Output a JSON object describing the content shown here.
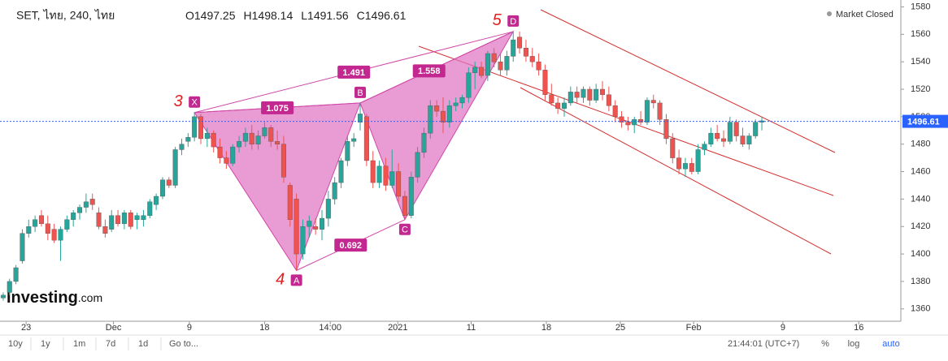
{
  "header": {
    "symbol": "SET, ไทย, 240, ไทย",
    "ohlc": [
      {
        "label": "O",
        "value": 1497.25
      },
      {
        "label": "H",
        "value": 1498.14
      },
      {
        "label": "L",
        "value": 1491.56
      },
      {
        "label": "C",
        "value": 1496.61
      }
    ],
    "status": "Market Closed",
    "logo": "Investing",
    "logo_suffix": ".com"
  },
  "chart_data": {
    "type": "candlestick",
    "up_color": "#26a69a",
    "down_color": "#ef5350",
    "ylim": [
      1351,
      1585
    ],
    "yticks": [
      1360,
      1380,
      1400,
      1420,
      1440,
      1460,
      1480,
      1500,
      1520,
      1540,
      1560,
      1580
    ],
    "xlim": [
      -0.5,
      140.8
    ],
    "xticks": [
      {
        "value": 3.6,
        "label": "23"
      },
      {
        "value": 17.3,
        "label": "Dec"
      },
      {
        "value": 29.2,
        "label": "9"
      },
      {
        "value": 41,
        "label": "18"
      },
      {
        "value": 51.3,
        "label": "14:00"
      },
      {
        "value": 61.9,
        "label": "2021"
      },
      {
        "value": 73.4,
        "label": "11"
      },
      {
        "value": 85.2,
        "label": "18"
      },
      {
        "value": 96.8,
        "label": "25"
      },
      {
        "value": 108.3,
        "label": "Feb"
      },
      {
        "value": 122.3,
        "label": "9"
      },
      {
        "value": 134.2,
        "label": "16"
      }
    ],
    "last_price": 1496.61,
    "candles": [
      [
        1368,
        1372,
        1366,
        1370
      ],
      [
        1372,
        1382,
        1370,
        1380
      ],
      [
        1380,
        1392,
        1378,
        1390
      ],
      [
        1395,
        1418,
        1393,
        1415
      ],
      [
        1415,
        1425,
        1412,
        1420
      ],
      [
        1420,
        1428,
        1416,
        1425
      ],
      [
        1428,
        1432,
        1420,
        1422
      ],
      [
        1422,
        1428,
        1410,
        1415
      ],
      [
        1418,
        1422,
        1408,
        1410
      ],
      [
        1410,
        1420,
        1395,
        1418
      ],
      [
        1418,
        1428,
        1416,
        1425
      ],
      [
        1425,
        1432,
        1420,
        1430
      ],
      [
        1430,
        1436,
        1425,
        1434
      ],
      [
        1434,
        1444,
        1430,
        1438
      ],
      [
        1440,
        1444,
        1432,
        1436
      ],
      [
        1430,
        1434,
        1418,
        1420
      ],
      [
        1420,
        1425,
        1412,
        1415
      ],
      [
        1418,
        1432,
        1416,
        1428
      ],
      [
        1428,
        1432,
        1420,
        1422
      ],
      [
        1422,
        1432,
        1418,
        1430
      ],
      [
        1430,
        1432,
        1418,
        1420
      ],
      [
        1425,
        1430,
        1418,
        1428
      ],
      [
        1425,
        1432,
        1420,
        1428
      ],
      [
        1428,
        1440,
        1426,
        1438
      ],
      [
        1436,
        1444,
        1432,
        1442
      ],
      [
        1442,
        1456,
        1440,
        1454
      ],
      [
        1454,
        1456,
        1448,
        1450
      ],
      [
        1450,
        1478,
        1448,
        1476
      ],
      [
        1476,
        1484,
        1472,
        1480
      ],
      [
        1482,
        1488,
        1478,
        1485
      ],
      [
        1485,
        1503,
        1482,
        1500
      ],
      [
        1500,
        1502,
        1480,
        1484
      ],
      [
        1484,
        1492,
        1478,
        1488
      ],
      [
        1488,
        1490,
        1474,
        1478
      ],
      [
        1478,
        1484,
        1466,
        1470
      ],
      [
        1470,
        1475,
        1462,
        1466
      ],
      [
        1466,
        1480,
        1464,
        1478
      ],
      [
        1478,
        1486,
        1474,
        1482
      ],
      [
        1482,
        1492,
        1478,
        1488
      ],
      [
        1488,
        1494,
        1476,
        1480
      ],
      [
        1480,
        1490,
        1476,
        1486
      ],
      [
        1486,
        1496,
        1484,
        1492
      ],
      [
        1492,
        1494,
        1478,
        1482
      ],
      [
        1482,
        1490,
        1476,
        1480
      ],
      [
        1480,
        1486,
        1452,
        1456
      ],
      [
        1450,
        1452,
        1420,
        1425
      ],
      [
        1440,
        1444,
        1388,
        1400
      ],
      [
        1400,
        1425,
        1396,
        1420
      ],
      [
        1420,
        1428,
        1412,
        1424
      ],
      [
        1420,
        1426,
        1414,
        1418
      ],
      [
        1418,
        1432,
        1410,
        1426
      ],
      [
        1426,
        1446,
        1420,
        1440
      ],
      [
        1440,
        1456,
        1436,
        1452
      ],
      [
        1452,
        1470,
        1448,
        1468
      ],
      [
        1468,
        1486,
        1464,
        1482
      ],
      [
        1482,
        1488,
        1478,
        1484
      ],
      [
        1496,
        1510,
        1490,
        1502
      ],
      [
        1500,
        1502,
        1464,
        1468
      ],
      [
        1468,
        1475,
        1448,
        1452
      ],
      [
        1452,
        1468,
        1448,
        1464
      ],
      [
        1464,
        1470,
        1446,
        1450
      ],
      [
        1450,
        1476,
        1448,
        1460
      ],
      [
        1460,
        1466,
        1438,
        1442
      ],
      [
        1442,
        1446,
        1425,
        1428
      ],
      [
        1428,
        1460,
        1426,
        1456
      ],
      [
        1456,
        1478,
        1452,
        1474
      ],
      [
        1474,
        1492,
        1470,
        1488
      ],
      [
        1488,
        1512,
        1484,
        1508
      ],
      [
        1508,
        1512,
        1500,
        1504
      ],
      [
        1504,
        1514,
        1488,
        1496
      ],
      [
        1496,
        1512,
        1492,
        1508
      ],
      [
        1508,
        1514,
        1504,
        1510
      ],
      [
        1510,
        1516,
        1506,
        1514
      ],
      [
        1514,
        1536,
        1510,
        1532
      ],
      [
        1532,
        1540,
        1520,
        1536
      ],
      [
        1536,
        1540,
        1528,
        1530
      ],
      [
        1530,
        1548,
        1526,
        1546
      ],
      [
        1546,
        1550,
        1536,
        1540
      ],
      [
        1540,
        1546,
        1530,
        1534
      ],
      [
        1534,
        1548,
        1530,
        1544
      ],
      [
        1544,
        1562,
        1540,
        1556
      ],
      [
        1558,
        1562,
        1546,
        1550
      ],
      [
        1550,
        1556,
        1540,
        1544
      ],
      [
        1544,
        1550,
        1536,
        1540
      ],
      [
        1540,
        1546,
        1530,
        1534
      ],
      [
        1534,
        1538,
        1512,
        1516
      ],
      [
        1516,
        1524,
        1508,
        1510
      ],
      [
        1510,
        1514,
        1502,
        1506
      ],
      [
        1506,
        1514,
        1500,
        1510
      ],
      [
        1510,
        1522,
        1508,
        1518
      ],
      [
        1518,
        1522,
        1510,
        1514
      ],
      [
        1514,
        1522,
        1510,
        1520
      ],
      [
        1520,
        1522,
        1508,
        1512
      ],
      [
        1512,
        1524,
        1510,
        1520
      ],
      [
        1520,
        1526,
        1512,
        1516
      ],
      [
        1516,
        1522,
        1504,
        1508
      ],
      [
        1508,
        1512,
        1496,
        1500
      ],
      [
        1500,
        1504,
        1492,
        1496
      ],
      [
        1496,
        1500,
        1490,
        1494
      ],
      [
        1494,
        1500,
        1488,
        1498
      ],
      [
        1498,
        1504,
        1494,
        1496
      ],
      [
        1496,
        1514,
        1494,
        1512
      ],
      [
        1512,
        1516,
        1506,
        1510
      ],
      [
        1510,
        1512,
        1494,
        1498
      ],
      [
        1498,
        1502,
        1480,
        1484
      ],
      [
        1484,
        1488,
        1466,
        1470
      ],
      [
        1470,
        1476,
        1458,
        1462
      ],
      [
        1462,
        1470,
        1456,
        1466
      ],
      [
        1466,
        1470,
        1458,
        1460
      ],
      [
        1460,
        1480,
        1458,
        1476
      ],
      [
        1476,
        1482,
        1472,
        1480
      ],
      [
        1480,
        1492,
        1478,
        1488
      ],
      [
        1488,
        1494,
        1482,
        1484
      ],
      [
        1484,
        1490,
        1478,
        1482
      ],
      [
        1482,
        1500,
        1480,
        1496
      ],
      [
        1496,
        1498,
        1482,
        1486
      ],
      [
        1486,
        1492,
        1478,
        1480
      ],
      [
        1480,
        1488,
        1476,
        1486
      ],
      [
        1486,
        1498,
        1484,
        1496
      ],
      [
        1496,
        1500,
        1490,
        1497
      ]
    ],
    "pattern": [
      {
        "label": "X",
        "index": 30,
        "price": 1503,
        "note": "3"
      },
      {
        "label": "A",
        "index": 46,
        "price": 1388,
        "note": "4"
      },
      {
        "label": "B",
        "index": 56,
        "price": 1510
      },
      {
        "label": "C",
        "index": 63,
        "price": 1425
      },
      {
        "label": "D",
        "index": 80,
        "price": 1562,
        "note": "5"
      }
    ],
    "ratios": [
      "1.075",
      "1.491",
      "0.692",
      "1.558"
    ]
  },
  "toolbar": {
    "ranges": [
      "10y",
      "1y",
      "1m",
      "7d",
      "1d"
    ],
    "goto": "Go to...",
    "time": "21:44:01 (UTC+7)",
    "options": [
      "%",
      "log",
      "auto"
    ]
  }
}
